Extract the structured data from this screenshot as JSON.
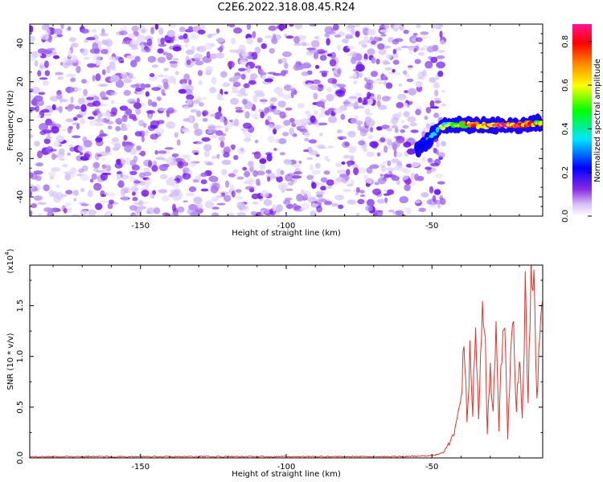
{
  "title": "C2E6.2022.318.08.45.R24",
  "spectrogram": {
    "chart_data": {
      "type": "heatmap",
      "xlabel": "Height of straight line (km)",
      "ylabel": "Frequency (Hz)",
      "xlim": [
        -188,
        -12
      ],
      "ylim": [
        -50,
        50
      ],
      "x_ticks": [
        -150,
        -100,
        -50
      ],
      "x_tick_labels": [
        "-150",
        "-100",
        "-50"
      ],
      "y_ticks": [
        -40,
        -20,
        0,
        20,
        40
      ],
      "y_tick_labels": [
        "-40",
        "-20",
        "0",
        "20",
        "40"
      ],
      "noise_region": {
        "x_range": [
          -188,
          -46
        ],
        "y_range": [
          -50,
          50
        ],
        "normalized_amplitude": 0.05
      },
      "signal_track": {
        "x": [
          -55,
          -52,
          -50,
          -48,
          -46,
          -44,
          -40,
          -35,
          -30,
          -25,
          -20,
          -15,
          -12
        ],
        "frequency": [
          -15,
          -12,
          -8,
          -5,
          -3,
          -2,
          -2.5,
          -2.5,
          -3,
          -2.5,
          -3,
          -1.5,
          -1.5
        ],
        "normalized_amplitude": [
          0.15,
          0.2,
          0.25,
          0.35,
          0.45,
          0.5,
          0.6,
          0.7,
          0.75,
          0.8,
          0.85,
          0.7,
          0.6
        ]
      }
    },
    "colorbar": {
      "label": "Normalized spectral amplitude",
      "range": [
        0.0,
        0.88
      ],
      "ticks": [
        0.0,
        0.2,
        0.4,
        0.6,
        0.8
      ],
      "tick_labels": [
        "0.0",
        "0.2",
        "0.4",
        "0.6",
        "0.8"
      ],
      "colors": [
        "#ffffff",
        "#8a2be2",
        "#0000ff",
        "#00e5ff",
        "#00ff00",
        "#ffff00",
        "#ff8000",
        "#ff0000",
        "#ff1493"
      ]
    }
  },
  "snr": {
    "chart_data": {
      "type": "line",
      "xlabel": "Height of straight line (km)",
      "ylabel": "SNR (10 * v/v)",
      "y_multiplier_label": "(x10",
      "y_multiplier_exp": "4",
      "xlim": [
        -188,
        -12
      ],
      "ylim": [
        0,
        1.9
      ],
      "x_ticks": [
        -150,
        -100,
        -50
      ],
      "x_tick_labels": [
        "-150",
        "-100",
        "-50"
      ],
      "y_ticks": [
        0.0,
        0.5,
        1.0,
        1.5
      ],
      "y_tick_labels": [
        "0.0",
        "0.5",
        "1.0",
        "1.5"
      ],
      "series": [
        {
          "color": "#e8302a",
          "x": [
            -188,
            -150,
            -100,
            -60,
            -50,
            -46,
            -44,
            -42,
            -41,
            -40,
            -39,
            -38,
            -37,
            -36,
            -35,
            -34,
            -33,
            -32,
            -31,
            -30,
            -29,
            -28,
            -27,
            -26,
            -25,
            -24,
            -23,
            -22,
            -21,
            -20,
            -19,
            -18,
            -17,
            -16,
            -15,
            -14,
            -13,
            -12
          ],
          "y": [
            0.01,
            0.01,
            0.01,
            0.01,
            0.02,
            0.05,
            0.15,
            0.3,
            0.45,
            0.55,
            1.15,
            0.4,
            1.0,
            0.45,
            1.35,
            0.35,
            1.3,
            1.45,
            0.25,
            0.9,
            0.4,
            1.3,
            0.3,
            1.05,
            1.15,
            0.2,
            1.1,
            1.25,
            0.45,
            1.1,
            0.35,
            1.65,
            0.55,
            1.7,
            1.9,
            0.6,
            1.1,
            1.55
          ]
        }
      ]
    }
  }
}
